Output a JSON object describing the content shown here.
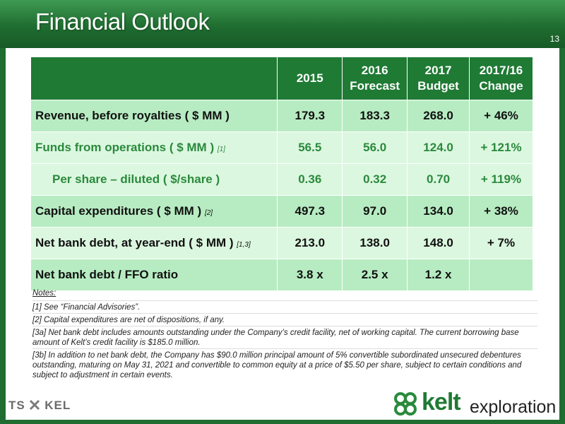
{
  "header": {
    "title": "Financial Outlook",
    "page_number": "13"
  },
  "table": {
    "columns": [
      {
        "line1": "",
        "line2": ""
      },
      {
        "line1": "2015",
        "line2": ""
      },
      {
        "line1": "2016",
        "line2": "Forecast"
      },
      {
        "line1": "2017",
        "line2": "Budget"
      },
      {
        "line1": "2017/16",
        "line2": "Change"
      }
    ],
    "rows": [
      {
        "label": "Revenue, before royalties ( $ MM )",
        "footnote": "",
        "values": [
          "179.3",
          "183.3",
          "268.0",
          "+ 46%"
        ]
      },
      {
        "label": "Funds from operations ( $ MM )",
        "footnote": "[1]",
        "values": [
          "56.5",
          "56.0",
          "124.0",
          "+ 121%"
        ]
      },
      {
        "label": "Per share – diluted ( $/share )",
        "footnote": "",
        "values": [
          "0.36",
          "0.32",
          "0.70",
          "+ 119%"
        ]
      },
      {
        "label": "Capital expenditures ( $ MM )",
        "footnote": "[2]",
        "values": [
          "497.3",
          "97.0",
          "134.0",
          "+ 38%"
        ]
      },
      {
        "label": "Net bank debt, at year-end ( $ MM )",
        "footnote": "[1,3]",
        "values": [
          "213.0",
          "138.0",
          "148.0",
          "+ 7%"
        ]
      },
      {
        "label": "Net bank debt / FFO ratio",
        "footnote": "",
        "values": [
          "3.8 x",
          "2.5 x",
          "1.2 x",
          ""
        ]
      }
    ]
  },
  "notes": {
    "title": "Notes:",
    "items": [
      "[1] See “Financial Advisories”.",
      "[2] Capital expenditures are net of dispositions, if any.",
      "[3a] Net bank debt includes amounts outstanding under the Company’s credit facility, net of working capital. The current borrowing base amount of Kelt’s credit facility is $185.0 million.",
      "[3b] In addition to net bank debt, the Company has $90.0 million principal amount of 5% convertible subordinated unsecured debentures outstanding, maturing on May 31, 2021 and convertible to common equity at a price of $5.50 per share, subject to certain conditions and subject to adjustment in certain events."
    ]
  },
  "footer": {
    "exchange_left": "TS",
    "exchange_right": "KEL",
    "logo_word": "kelt",
    "logo_tagline": "exploration"
  },
  "colors": {
    "header_green": "#1f6d30",
    "table_header": "#1f7a34",
    "row_dark": "#b7ecc2",
    "row_light": "#dcf7e0",
    "ffo_text_green": "#2a8a3c"
  },
  "icons": {
    "logo_mark": "celtic-knot-icon",
    "exchange_mark": "tsx-maple-icon"
  }
}
